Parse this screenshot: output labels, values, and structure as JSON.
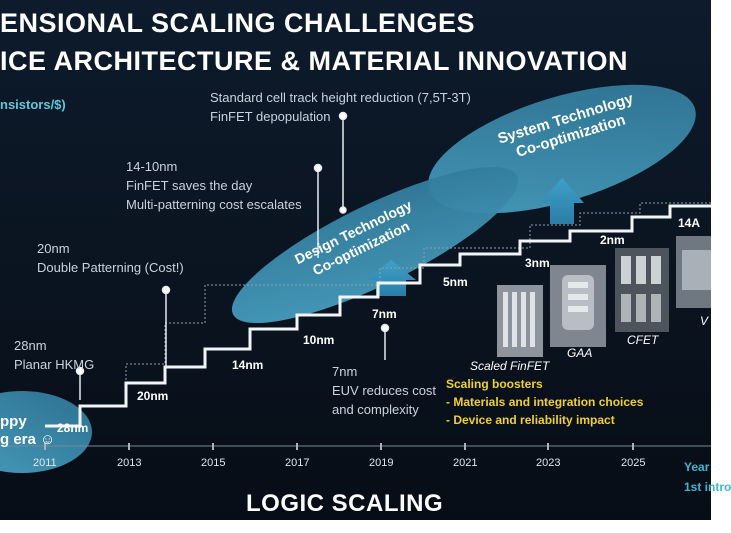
{
  "title": {
    "line1": "ENSIONAL SCALING CHALLENGES",
    "line2": "ICE ARCHITECTURE & MATERIAL INNOVATION"
  },
  "yaxis_label": "nsistors/$)",
  "ovals": {
    "system": [
      "System Technology",
      "Co-optimization"
    ],
    "design": [
      "Design Technology",
      "Co-optimization"
    ],
    "happy": [
      "ppy",
      "g era ☺"
    ]
  },
  "annotations": {
    "cell_track": [
      "Standard cell track height reduction (7,5T-3T)",
      "FinFET depopulation"
    ],
    "finfet": [
      "14-10nm",
      "FinFET saves the day",
      "Multi-patterning cost escalates"
    ],
    "double_pattern": [
      "20nm",
      "Double Patterning (Cost!)"
    ],
    "hkmg": [
      "28nm",
      "Planar HKMG"
    ],
    "euv": [
      "7nm",
      "EUV reduces cost",
      "and complexity"
    ]
  },
  "nodes": [
    "28nm",
    "20nm",
    "14nm",
    "10nm",
    "7nm",
    "5nm",
    "3nm",
    "2nm",
    "14A"
  ],
  "device_labels": {
    "finfet": "Scaled FinFET",
    "gaa": "GAA",
    "cfet": "CFET",
    "vt": "V"
  },
  "boosters": {
    "heading": "Scaling boosters",
    "items": [
      "-  Materials and integration choices",
      "-  Device and reliability impact"
    ]
  },
  "years": [
    "2011",
    "2013",
    "2015",
    "2017",
    "2019",
    "2021",
    "2023",
    "2025"
  ],
  "year_axis": [
    "Year",
    "1st intro"
  ],
  "footer": "LOGIC SCALING",
  "colors": {
    "oval": "#3e8fb0",
    "arrow": "#2f88b3",
    "boost": "#f2d02a",
    "background": "#0b1522"
  }
}
